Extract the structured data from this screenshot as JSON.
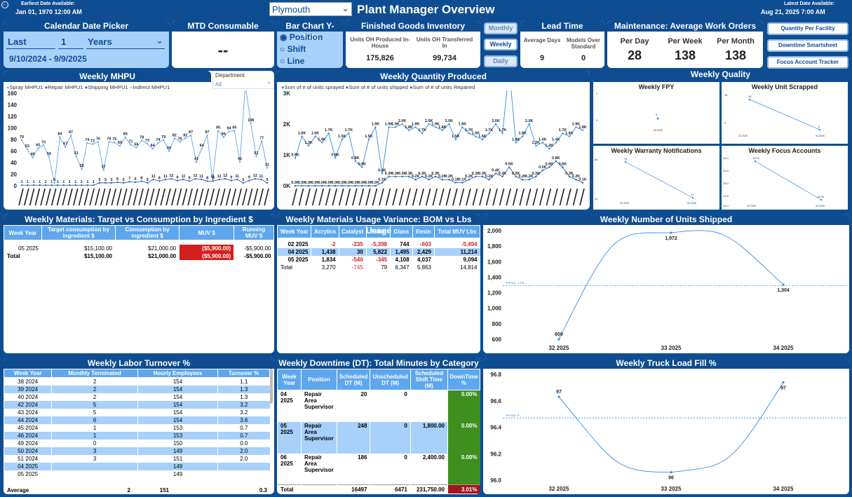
{
  "header": {
    "earliest_label": "Earliest Date Available:",
    "earliest_value": "Jan 01, 1970 12:00 AM",
    "latest_label": "Latest Date Available:",
    "latest_value": "Aug 21, 2025 7:00 AM",
    "facility": "Plymouth",
    "title": "Plant Manager Overview"
  },
  "date_picker": {
    "title": "Calendar Date Picker",
    "mode": "Last",
    "count": "1",
    "unit": "Years",
    "range": "9/10/2024 - 9/9/2025"
  },
  "mtd": {
    "title": "MTD Consumable Supplies",
    "value": "--"
  },
  "yaxis": {
    "title": "Bar Chart Y-Axis",
    "options": [
      "Position",
      "Shift",
      "Line"
    ],
    "selected": 0
  },
  "fgi": {
    "title": "Finished Goods Inventory",
    "col1_label": "Units OH Produced In-House",
    "col1_value": "175,826",
    "col2_label": "Units OH Transferred In",
    "col2_value": "99,734"
  },
  "period_buttons": {
    "monthly": "Monthly",
    "weekly": "Weekly",
    "daily": "Daily"
  },
  "lead_time": {
    "title": "Lead Time",
    "avg_label": "Average Days",
    "avg_value": "9",
    "models_label": "Models Over Standard",
    "models_value": "0"
  },
  "maintenance": {
    "title": "Maintenance: Average Work Orders Closed",
    "day_label": "Per Day",
    "day_value": "28",
    "week_label": "Per Week",
    "week_value": "138",
    "month_label": "Per Month",
    "month_value": "138"
  },
  "nav": {
    "qpf": "Quantity Per Facility",
    "downtime": "Downtime Smartsheet",
    "focus": "Focus Account Tracker"
  },
  "mhpu": {
    "title": "Weekly MHPU",
    "dept_label": "Department",
    "dept_value": "All",
    "legend": [
      "Spray MHPU1",
      "Repair MHPU1",
      "Shipping MHPU1",
      "Indirect MHPU1"
    ],
    "yticks": [
      "160",
      "140",
      "120",
      "100",
      "80",
      "60",
      "40",
      "20",
      "0"
    ]
  },
  "qty": {
    "title": "Weekly Quantity Produced",
    "legend": [
      "Sum of # of units sprayed",
      "Sum of # of units shipped",
      "Sum of # of units Repaired"
    ],
    "yticks": [
      "3K",
      "2K",
      "1K",
      "0K"
    ]
  },
  "quality": {
    "title": "Weekly Quality",
    "fpy": "Weekly FPY",
    "scrapped": "Weekly Unit Scrapped",
    "warranty": "Weekly Warranty Notifications",
    "focus": "Weekly Focus Accounts"
  },
  "materials": {
    "title": "Weekly Materials: Target vs Consumption by Ingredient $",
    "headers": [
      "Week Year",
      "Target consumption by ingredient $",
      "Consumption by ingredient $",
      "MUV $",
      "Running MUV $"
    ],
    "rows": [
      [
        "05 2025",
        "$15,100.00",
        "$21,000.00",
        "($5,900.00)",
        "-$5,900.00"
      ]
    ],
    "total": [
      "Total",
      "$15,100.00",
      "$21,000.00",
      "($5,900.00)",
      "-$5,900.00"
    ]
  },
  "bom": {
    "title": "Weekly Materials Usage Variance: BOM vs Lbs Usage",
    "headers": [
      "Week Year",
      "Acrylics",
      "Catalyst",
      "Filler",
      "Glass",
      "Resin",
      "Total MUV Lbs"
    ],
    "rows": [
      [
        "02 2025",
        "-2",
        "-235",
        "-5,398",
        "744",
        "-603",
        "-5,494"
      ],
      [
        "04 2025",
        "1,438",
        "30",
        "5,822",
        "1,495",
        "2,429",
        "11,214"
      ],
      [
        "05 2025",
        "1,834",
        "-540",
        "-345",
        "4,108",
        "4,037",
        "9,094"
      ]
    ],
    "total": [
      "Total",
      "3,270",
      "-745",
      "79",
      "6,347",
      "5,863",
      "14,814"
    ]
  },
  "shipped": {
    "title": "Weekly Number of Units Shipped",
    "avg_label": "Average: 1,292"
  },
  "turnover": {
    "title": "Weekly Labor Turnover %",
    "headers": [
      "Week Year",
      "Monthly Terminated",
      "Hourly Employees",
      "Turnover %"
    ],
    "rows": [
      [
        "38 2024",
        "2",
        "154",
        "1.1"
      ],
      [
        "39 2024",
        "2",
        "154",
        "1.3"
      ],
      [
        "40 2024",
        "2",
        "154",
        "1.3"
      ],
      [
        "42 2024",
        "5",
        "154",
        "3.2"
      ],
      [
        "43 2024",
        "5",
        "154",
        "3.2"
      ],
      [
        "44 2024",
        "6",
        "154",
        "3.6"
      ],
      [
        "45 2024",
        "1",
        "153",
        "0.7"
      ],
      [
        "46 2024",
        "1",
        "153",
        "0.7"
      ],
      [
        "49 2024",
        "0",
        "150",
        "0.0"
      ],
      [
        "50 2024",
        "3",
        "149",
        "2.0"
      ],
      [
        "51 2024",
        "3",
        "151",
        "2.0"
      ],
      [
        "04 2025",
        "",
        "149",
        ""
      ],
      [
        "05 2025",
        "",
        "149",
        ""
      ]
    ],
    "avg": [
      "Average",
      "2",
      "151",
      "0.3"
    ]
  },
  "downtime": {
    "title": "Weekly Downtime (DT): Total Minutes by Category",
    "headers": [
      "Week Year",
      "Position",
      "Scheduled DT (M)",
      "Unscheduled DT (M)",
      "Scheduled Shift Time (M)",
      "DownTime %"
    ],
    "rows": [
      [
        "04 2025",
        "Repair Area Supervisor",
        "20",
        "0",
        "",
        "0.00%"
      ],
      [
        "05 2025",
        "Repair Area Supervisor",
        "248",
        "0",
        "1,800.00",
        "0.00%"
      ],
      [
        "06 2025",
        "Repair Area Supervisor",
        "186",
        "0",
        "2,400.00",
        "0.00%"
      ]
    ],
    "total": [
      "Total",
      "",
      "16497",
      "6471",
      "231,750.00",
      "3.01%"
    ]
  },
  "truck": {
    "title": "Weekly Truck Load Fill %",
    "avg_label": "Average %"
  },
  "colors": {
    "navy": "#0e4d92",
    "header_blue": "#5ea7ee",
    "row_blue": "#a7d0fb",
    "line": "#2f8ee8",
    "green": "#3f8f1e",
    "red": "#d51f1f"
  },
  "chart_data": [
    {
      "type": "line",
      "title": "Weekly Number of Units Shipped",
      "categories": [
        "32 2025",
        "33 2025",
        "34 2025"
      ],
      "values": [
        600,
        1972,
        1304
      ],
      "data_labels": [
        "600",
        "1,972",
        "1,304"
      ],
      "ylim": [
        600,
        2000
      ],
      "yticks": [
        "2,000",
        "1,800",
        "1,600",
        "1,400",
        "1,200",
        "1,000",
        "800",
        "600"
      ],
      "average": 1292,
      "grid": false
    },
    {
      "type": "line",
      "title": "Weekly Truck Load Fill %",
      "categories": [
        "32 2025",
        "33 2025",
        "34 2025"
      ],
      "values": [
        96.63,
        96.06,
        96.74
      ],
      "data_labels": [
        "97",
        "96",
        "97"
      ],
      "ylim": [
        96.0,
        96.8
      ],
      "yticks": [
        "96.8",
        "96.6",
        "96.4",
        "96.2",
        "96.0"
      ],
      "average": 96.47,
      "grid": false
    },
    {
      "type": "line",
      "title": "Weekly MHPU",
      "series": [
        {
          "name": "Spray MHPU1",
          "values": [
            79,
            63,
            49,
            65,
            70,
            50,
            5,
            84,
            67,
            87,
            51,
            29,
            74,
            72,
            76,
            27,
            76,
            75,
            69,
            84,
            71,
            66,
            78,
            73,
            64,
            74,
            79,
            60,
            82,
            76,
            82,
            87,
            41,
            64,
            87,
            11,
            95,
            84,
            94,
            95,
            41,
            175,
            108,
            51,
            77,
            31
          ]
        },
        {
          "name": "Repair MHPU1",
          "values": [
            1,
            1,
            1,
            1,
            1,
            1,
            1,
            1,
            1,
            1,
            1,
            1,
            1,
            5,
            5,
            5,
            6,
            5,
            7,
            6,
            8,
            5,
            11,
            8,
            11,
            12,
            9,
            11,
            8,
            12,
            11,
            8,
            8,
            11,
            12,
            9,
            11,
            5,
            9,
            12,
            11,
            5
          ]
        }
      ]
    },
    {
      "type": "line",
      "title": "Weekly Quantity Produced",
      "series": [
        {
          "name": "Sum of # of units sprayed",
          "values": [
            900,
            1600,
            1300,
            1600,
            1400,
            1700,
            900,
            1500,
            1700,
            800,
            600,
            1500,
            1900,
            400,
            1900,
            1900,
            2000,
            1800,
            1900,
            1700,
            2000,
            1900,
            1800,
            2000,
            1500,
            1900,
            1700,
            1600,
            1500,
            1700,
            2000,
            1700,
            3800,
            1400,
            1600,
            2000,
            1300,
            1400,
            1200,
            1400,
            1700,
            1600,
            1900,
            1800
          ]
        },
        {
          "name": "Sum of # of units shipped",
          "values": [
            0,
            0,
            0,
            0,
            0,
            0,
            0,
            0,
            0,
            0,
            0,
            0,
            0,
            100,
            300,
            300,
            300,
            300,
            200,
            300,
            200,
            300,
            200,
            200,
            100,
            100,
            200,
            300,
            300,
            200,
            400,
            300,
            600,
            300,
            200,
            200,
            300,
            500,
            600,
            800,
            600,
            300,
            200,
            100
          ]
        }
      ]
    }
  ]
}
